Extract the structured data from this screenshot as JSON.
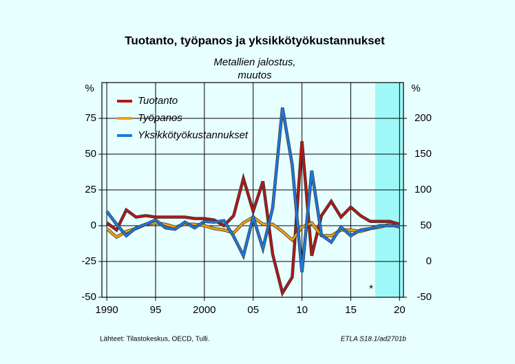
{
  "chart_data": {
    "type": "line",
    "title": "Tuotanto, työpanos ja yksikkötyökustannukset",
    "subtitle": [
      "Metallien jalostus,",
      "muutos"
    ],
    "y_label": "%",
    "y2_label": "%",
    "annotation": "*",
    "source": "Lähteet:  Tilastokeskus, OECD, Tulli.",
    "code": "ETLA S18.1/ad2701b",
    "x": [
      1990,
      1991,
      1992,
      1993,
      1994,
      1995,
      1996,
      1997,
      1998,
      1999,
      2000,
      2001,
      2002,
      2003,
      2004,
      2005,
      2006,
      2007,
      2008,
      2009,
      2010,
      2011,
      2012,
      2013,
      2014,
      2015,
      2016,
      2017,
      2018,
      2019,
      2020
    ],
    "series": [
      {
        "name": "Tuotanto",
        "color": "#b01818",
        "values": [
          2,
          -3,
          11,
          6,
          7,
          6,
          6,
          6,
          6,
          5,
          5,
          4,
          0,
          7,
          33,
          10,
          31,
          -20,
          -47,
          -36,
          59,
          -21,
          7,
          17,
          6,
          13,
          7,
          3,
          3,
          3,
          1
        ]
      },
      {
        "name": "Työpanos",
        "color": "#f0a010",
        "values": [
          -2,
          -8,
          -4,
          -2,
          1,
          2,
          1,
          -1,
          1,
          1,
          0,
          -2,
          -3,
          -5,
          2,
          6,
          1,
          1,
          -4,
          -10,
          -1,
          2,
          -7,
          -7,
          -3,
          -3,
          -4,
          -2,
          -1,
          1,
          -1
        ]
      },
      {
        "name": "Yksikkötyökustannukset",
        "color": "#1e78dc",
        "axis": "y2",
        "values": [
          70,
          52,
          36,
          47,
          52,
          58,
          47,
          45,
          55,
          47,
          56,
          55,
          57,
          35,
          8,
          62,
          18,
          75,
          215,
          135,
          -15,
          127,
          37,
          27,
          48,
          36,
          44,
          46,
          50,
          50,
          50
        ]
      }
    ],
    "xlim": [
      1989.5,
      2020.4
    ],
    "xticks": [
      1990,
      {
        "value": 1995,
        "label": "95"
      },
      2000,
      {
        "value": 2005,
        "label": "05"
      },
      {
        "value": 2010,
        "label": "10"
      },
      {
        "value": 2015,
        "label": "15"
      },
      {
        "value": 2020,
        "label": "20"
      }
    ],
    "ylim": [
      -50,
      100
    ],
    "yticks": [
      -50,
      -25,
      0,
      25,
      50,
      75
    ],
    "y2lim": [
      -50,
      250
    ],
    "y2ticks": [
      -50,
      0,
      50,
      100,
      150,
      200
    ],
    "highlight_x": [
      2017.5,
      2020.4
    ],
    "highlight_color": "#9ff8f8",
    "grid": true,
    "legend": "upper left"
  }
}
